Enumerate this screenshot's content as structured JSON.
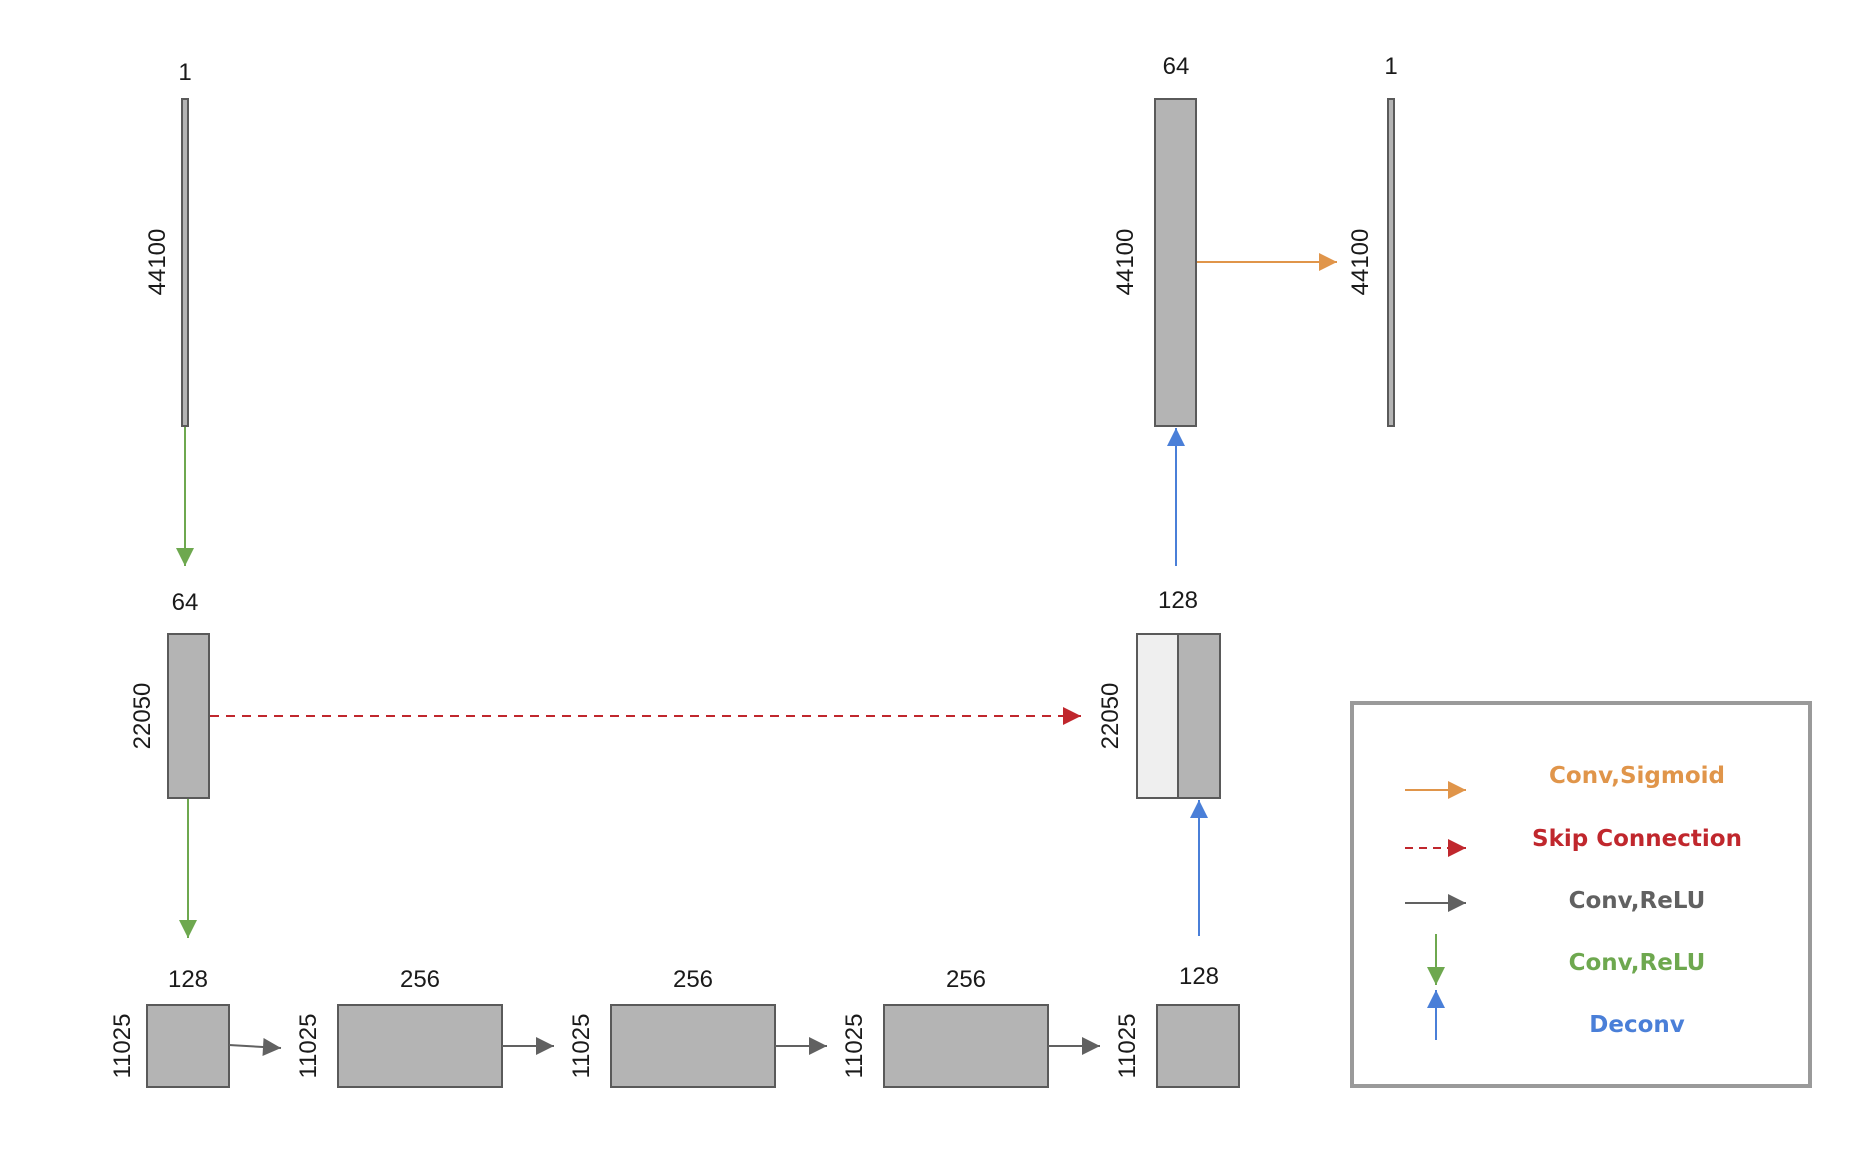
{
  "colors": {
    "orange": "#e0954a",
    "red": "#c0272d",
    "gray": "#616161",
    "green": "#6ea84f",
    "blue": "#4a7fd8"
  },
  "blocks": {
    "input": {
      "channels": "1",
      "length": "44100"
    },
    "enc1": {
      "channels": "64",
      "length": "22050"
    },
    "enc2": {
      "channels": "128",
      "length": "11025"
    },
    "mid1": {
      "channels": "256",
      "length": "11025"
    },
    "mid2": {
      "channels": "256",
      "length": "11025"
    },
    "mid3": {
      "channels": "256",
      "length": "11025"
    },
    "bottleneck": {
      "channels": "128",
      "length": "11025"
    },
    "dec1": {
      "channels": "128",
      "length": "22050"
    },
    "dec2": {
      "channels": "64",
      "length": "44100"
    },
    "output": {
      "channels": "1",
      "length": "44100"
    }
  },
  "legend": {
    "items": [
      {
        "label": "Conv,Sigmoid",
        "arrow": "orange-arrow"
      },
      {
        "label": "Skip Connection",
        "arrow": "red-dashed-arrow"
      },
      {
        "label": "Conv,ReLU",
        "arrow": "gray-arrow"
      },
      {
        "label": "Conv,ReLU",
        "arrow": "green-down-arrow"
      },
      {
        "label": "Deconv",
        "arrow": "blue-up-arrow"
      }
    ]
  }
}
